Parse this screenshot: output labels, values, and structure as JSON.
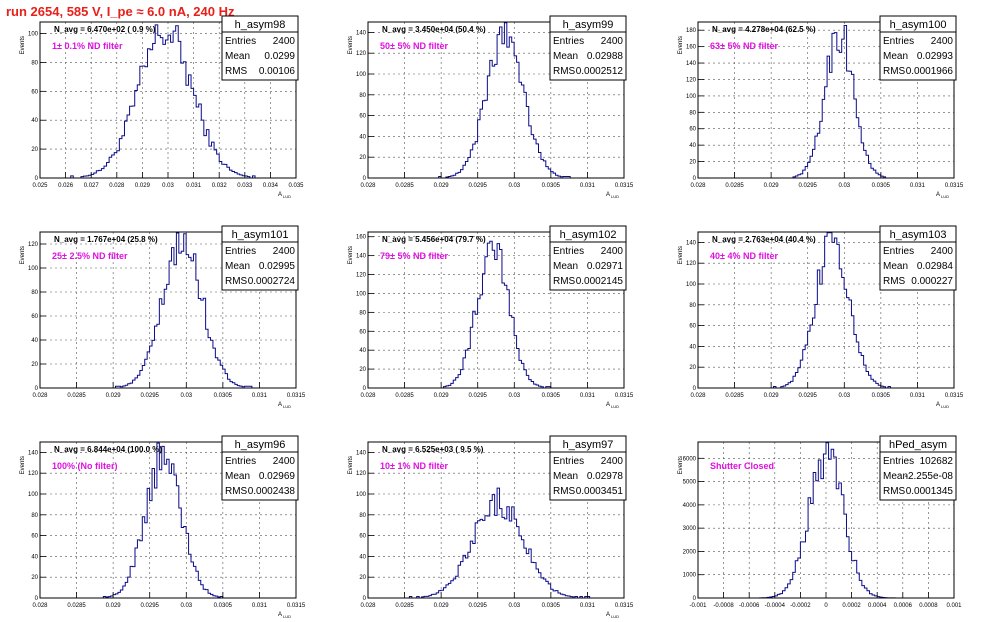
{
  "run_title": "run 2654,   585 V, I_pe ≈ 6.0 nA, 240 Hz",
  "colors": {
    "hist": "#0b0b8a",
    "grid": "#555555",
    "annotation": "#e010e0",
    "title": "#e8201a"
  },
  "stat_labels": {
    "entries": "Entries",
    "mean": "Mean",
    "rms": "RMS"
  },
  "chart_data": [
    {
      "type": "bar",
      "name": "h_asym98",
      "navg": "N_avg = 6.470e+02 ( 0.9 %)",
      "annotation": "1± 0.1% ND filter",
      "entries": "2400",
      "mean": "0.0299",
      "rms": "0.00106",
      "ylabel": "Events",
      "xlabel": "A",
      "xlim": [
        0.025,
        0.035
      ],
      "ylim": [
        0,
        108
      ],
      "xticks": [
        0.025,
        0.026,
        0.027,
        0.028,
        0.029,
        0.03,
        0.031,
        0.032,
        0.033,
        0.034,
        0.035
      ],
      "xticklabels": [
        "0.025",
        "0.026",
        "0.027",
        "0.028",
        "0.029",
        "0.03",
        "0.031",
        "0.032",
        "0.033",
        "0.034",
        "0.035"
      ],
      "yticks": [
        0,
        20,
        40,
        60,
        80,
        100
      ],
      "yticklabels": [
        "0",
        "20",
        "40",
        "60",
        "80",
        "100"
      ],
      "peak": 104,
      "mu": 0.0299,
      "sigma": 0.00106,
      "bin": 0.0001
    },
    {
      "type": "bar",
      "name": "h_asym99",
      "navg": "N_avg = 3.450e+04 (50.4 %)",
      "annotation": "50± 5% ND filter",
      "entries": "2400",
      "mean": "0.02988",
      "rms": "0.0002512",
      "ylabel": "Events",
      "xlabel": "A",
      "xlim": [
        0.028,
        0.0315
      ],
      "ylim": [
        0,
        150
      ],
      "xticks": [
        0.028,
        0.0285,
        0.029,
        0.0295,
        0.03,
        0.0305,
        0.031,
        0.0315
      ],
      "xticklabels": [
        "0.028",
        "0.0285",
        "0.029",
        "0.0295",
        "0.03",
        "0.0305",
        "0.031",
        "0.0315"
      ],
      "yticks": [
        0,
        20,
        40,
        60,
        80,
        100,
        120,
        140
      ],
      "yticklabels": [
        "0",
        "20",
        "40",
        "60",
        "80",
        "100",
        "120",
        "140"
      ],
      "peak": 145,
      "mu": 0.02988,
      "sigma": 0.0002512,
      "bin": 3.33e-05
    },
    {
      "type": "bar",
      "name": "h_asym100",
      "navg": "N_avg = 4.278e+04 (62.5 %)",
      "annotation": "63± 5% ND filter",
      "entries": "2400",
      "mean": "0.02993",
      "rms": "0.0001966",
      "ylabel": "Events",
      "xlabel": "A",
      "xlim": [
        0.028,
        0.0315
      ],
      "ylim": [
        0,
        190
      ],
      "xticks": [
        0.028,
        0.0285,
        0.029,
        0.0295,
        0.03,
        0.0305,
        0.031,
        0.0315
      ],
      "xticklabels": [
        "0.028",
        "0.0285",
        "0.029",
        "0.0295",
        "0.03",
        "0.0305",
        "0.031",
        "0.0315"
      ],
      "yticks": [
        0,
        20,
        40,
        60,
        80,
        100,
        120,
        140,
        160,
        180
      ],
      "yticklabels": [
        "0",
        "20",
        "40",
        "60",
        "80",
        "100",
        "120",
        "140",
        "160",
        "180"
      ],
      "peak": 185,
      "mu": 0.02993,
      "sigma": 0.0001966,
      "bin": 3.33e-05
    },
    {
      "type": "bar",
      "name": "h_asym101",
      "navg": "N_avg = 1.767e+04 (25.8 %)",
      "annotation": "25± 2.5% ND filter",
      "entries": "2400",
      "mean": "0.02995",
      "rms": "0.0002724",
      "ylabel": "Events",
      "xlabel": "A",
      "xlim": [
        0.028,
        0.0315
      ],
      "ylim": [
        0,
        130
      ],
      "xticks": [
        0.028,
        0.0285,
        0.029,
        0.0295,
        0.03,
        0.0305,
        0.031,
        0.0315
      ],
      "xticklabels": [
        "0.028",
        "0.0285",
        "0.029",
        "0.0295",
        "0.03",
        "0.0305",
        "0.031",
        "0.0315"
      ],
      "yticks": [
        0,
        20,
        40,
        60,
        80,
        100,
        120
      ],
      "yticklabels": [
        "0",
        "20",
        "40",
        "60",
        "80",
        "100",
        "120"
      ],
      "peak": 123,
      "mu": 0.02995,
      "sigma": 0.0002724,
      "bin": 3.33e-05
    },
    {
      "type": "bar",
      "name": "h_asym102",
      "navg": "N_avg = 5.456e+04 (79.7 %)",
      "annotation": "79± 5% ND filter",
      "entries": "2400",
      "mean": "0.02971",
      "rms": "0.0002145",
      "ylabel": "Events",
      "xlabel": "A",
      "xlim": [
        0.028,
        0.0315
      ],
      "ylim": [
        0,
        165
      ],
      "xticks": [
        0.028,
        0.0285,
        0.029,
        0.0295,
        0.03,
        0.0305,
        0.031,
        0.0315
      ],
      "xticklabels": [
        "0.028",
        "0.0285",
        "0.029",
        "0.0295",
        "0.03",
        "0.0305",
        "0.031",
        "0.0315"
      ],
      "yticks": [
        0,
        20,
        40,
        60,
        80,
        100,
        120,
        140,
        160
      ],
      "yticklabels": [
        "0",
        "20",
        "40",
        "60",
        "80",
        "100",
        "120",
        "140",
        "160"
      ],
      "peak": 158,
      "mu": 0.02971,
      "sigma": 0.0002145,
      "bin": 3.33e-05
    },
    {
      "type": "bar",
      "name": "h_asym103",
      "navg": "N_avg = 2.763e+04 (40.4 %)",
      "annotation": "40± 4% ND filter",
      "entries": "2400",
      "mean": "0.02984",
      "rms": "0.000227",
      "ylabel": "Events",
      "xlabel": "A",
      "xlim": [
        0.028,
        0.0315
      ],
      "ylim": [
        0,
        150
      ],
      "xticks": [
        0.028,
        0.0285,
        0.029,
        0.0295,
        0.03,
        0.0305,
        0.031,
        0.0315
      ],
      "xticklabels": [
        "0.028",
        "0.0285",
        "0.029",
        "0.0295",
        "0.03",
        "0.0305",
        "0.031",
        "0.0315"
      ],
      "yticks": [
        0,
        20,
        40,
        60,
        80,
        100,
        120,
        140
      ],
      "yticklabels": [
        "0",
        "20",
        "40",
        "60",
        "80",
        "100",
        "120",
        "140"
      ],
      "peak": 147,
      "mu": 0.02984,
      "sigma": 0.000227,
      "bin": 3.33e-05
    },
    {
      "type": "bar",
      "name": "h_asym96",
      "navg": "N_avg = 6.844e+04 (100.0 %)",
      "annotation": "100% (No filter)",
      "entries": "2400",
      "mean": "0.02969",
      "rms": "0.0002438",
      "ylabel": "Events",
      "xlabel": "A",
      "xlim": [
        0.028,
        0.0315
      ],
      "ylim": [
        0,
        150
      ],
      "xticks": [
        0.028,
        0.0285,
        0.029,
        0.0295,
        0.03,
        0.0305,
        0.031,
        0.0315
      ],
      "xticklabels": [
        "0.028",
        "0.0285",
        "0.029",
        "0.0295",
        "0.03",
        "0.0305",
        "0.031",
        "0.0315"
      ],
      "yticks": [
        0,
        20,
        40,
        60,
        80,
        100,
        120,
        140
      ],
      "yticklabels": [
        "0",
        "20",
        "40",
        "60",
        "80",
        "100",
        "120",
        "140"
      ],
      "peak": 140,
      "mu": 0.02969,
      "sigma": 0.0002438,
      "bin": 3.33e-05
    },
    {
      "type": "bar",
      "name": "h_asym97",
      "navg": "N_avg = 6.525e+03 ( 9.5 %)",
      "annotation": "10± 1% ND filter",
      "entries": "2400",
      "mean": "0.02978",
      "rms": "0.0003451",
      "ylabel": "Events",
      "xlabel": "A",
      "xlim": [
        0.028,
        0.0315
      ],
      "ylim": [
        0,
        150
      ],
      "xticks": [
        0.028,
        0.0285,
        0.029,
        0.0295,
        0.03,
        0.0305,
        0.031,
        0.0315
      ],
      "xticklabels": [
        "0.028",
        "0.0285",
        "0.029",
        "0.0295",
        "0.03",
        "0.0305",
        "0.031",
        "0.0315"
      ],
      "yticks": [
        0,
        20,
        40,
        60,
        80,
        100,
        120,
        140
      ],
      "yticklabels": [
        "0",
        "20",
        "40",
        "60",
        "80",
        "100",
        "120",
        "140"
      ],
      "peak": 96,
      "mu": 0.02978,
      "sigma": 0.0003451,
      "bin": 3.33e-05
    },
    {
      "type": "bar",
      "name": "hPed_asym",
      "navg": "",
      "annotation": "Shutter Closed",
      "entries": "102682",
      "mean": "-2.255e-08",
      "rms": "0.0001345",
      "ylabel": "Events",
      "xlabel": "",
      "xlim": [
        -0.001,
        0.001
      ],
      "ylim": [
        0,
        6700
      ],
      "xticks": [
        -0.001,
        -0.0008,
        -0.0006,
        -0.0004,
        -0.0002,
        0,
        0.0002,
        0.0004,
        0.0006,
        0.0008,
        0.001
      ],
      "xticklabels": [
        "-0.001",
        "-0.0008",
        "-0.0006",
        "-0.0004",
        "-0.0002",
        "0",
        "0.0002",
        "0.0004",
        "0.0006",
        "0.0008",
        "0.001"
      ],
      "yticks": [
        0,
        1000,
        2000,
        3000,
        4000,
        5000,
        6000
      ],
      "yticklabels": [
        "0",
        "1000",
        "2000",
        "3000",
        "4000",
        "5000",
        "6000"
      ],
      "peak": 6350,
      "mu": 0,
      "sigma": 0.0001345,
      "bin": 2e-05
    }
  ]
}
